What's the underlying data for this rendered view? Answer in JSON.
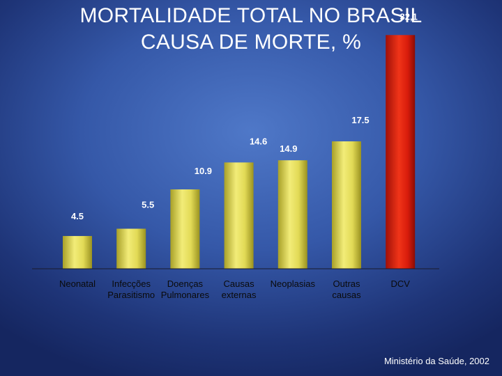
{
  "title": {
    "line1": "MORTALIDADE TOTAL NO BRASIL",
    "line2": "CAUSA DE MORTE, %"
  },
  "source": "Ministério da Saúde, 2002",
  "colors": {
    "bar_default": "#e8e060",
    "bar_highlight": "#e02010",
    "label_text": "#ffffff",
    "category_text": "#0a0a0a",
    "baseline": "#1a1a2a"
  },
  "chart_data": {
    "type": "bar",
    "categories": [
      [
        "Neonatal"
      ],
      [
        "Infecções",
        "Parasitismo"
      ],
      [
        "Doenças",
        "Pulmonares"
      ],
      [
        "Causas",
        "externas"
      ],
      [
        "Neoplasias"
      ],
      [
        "Outras",
        "causas"
      ],
      [
        "DCV"
      ]
    ],
    "values": [
      4.5,
      5.5,
      10.9,
      14.6,
      14.9,
      17.5,
      32.1
    ],
    "data_labels": [
      "4.5",
      "5.5",
      "10.9",
      "14.6",
      "14.9",
      "17.5",
      "32,1"
    ],
    "highlight_index": 6,
    "ylim": [
      0,
      35
    ],
    "grid": false,
    "legend": "none"
  }
}
